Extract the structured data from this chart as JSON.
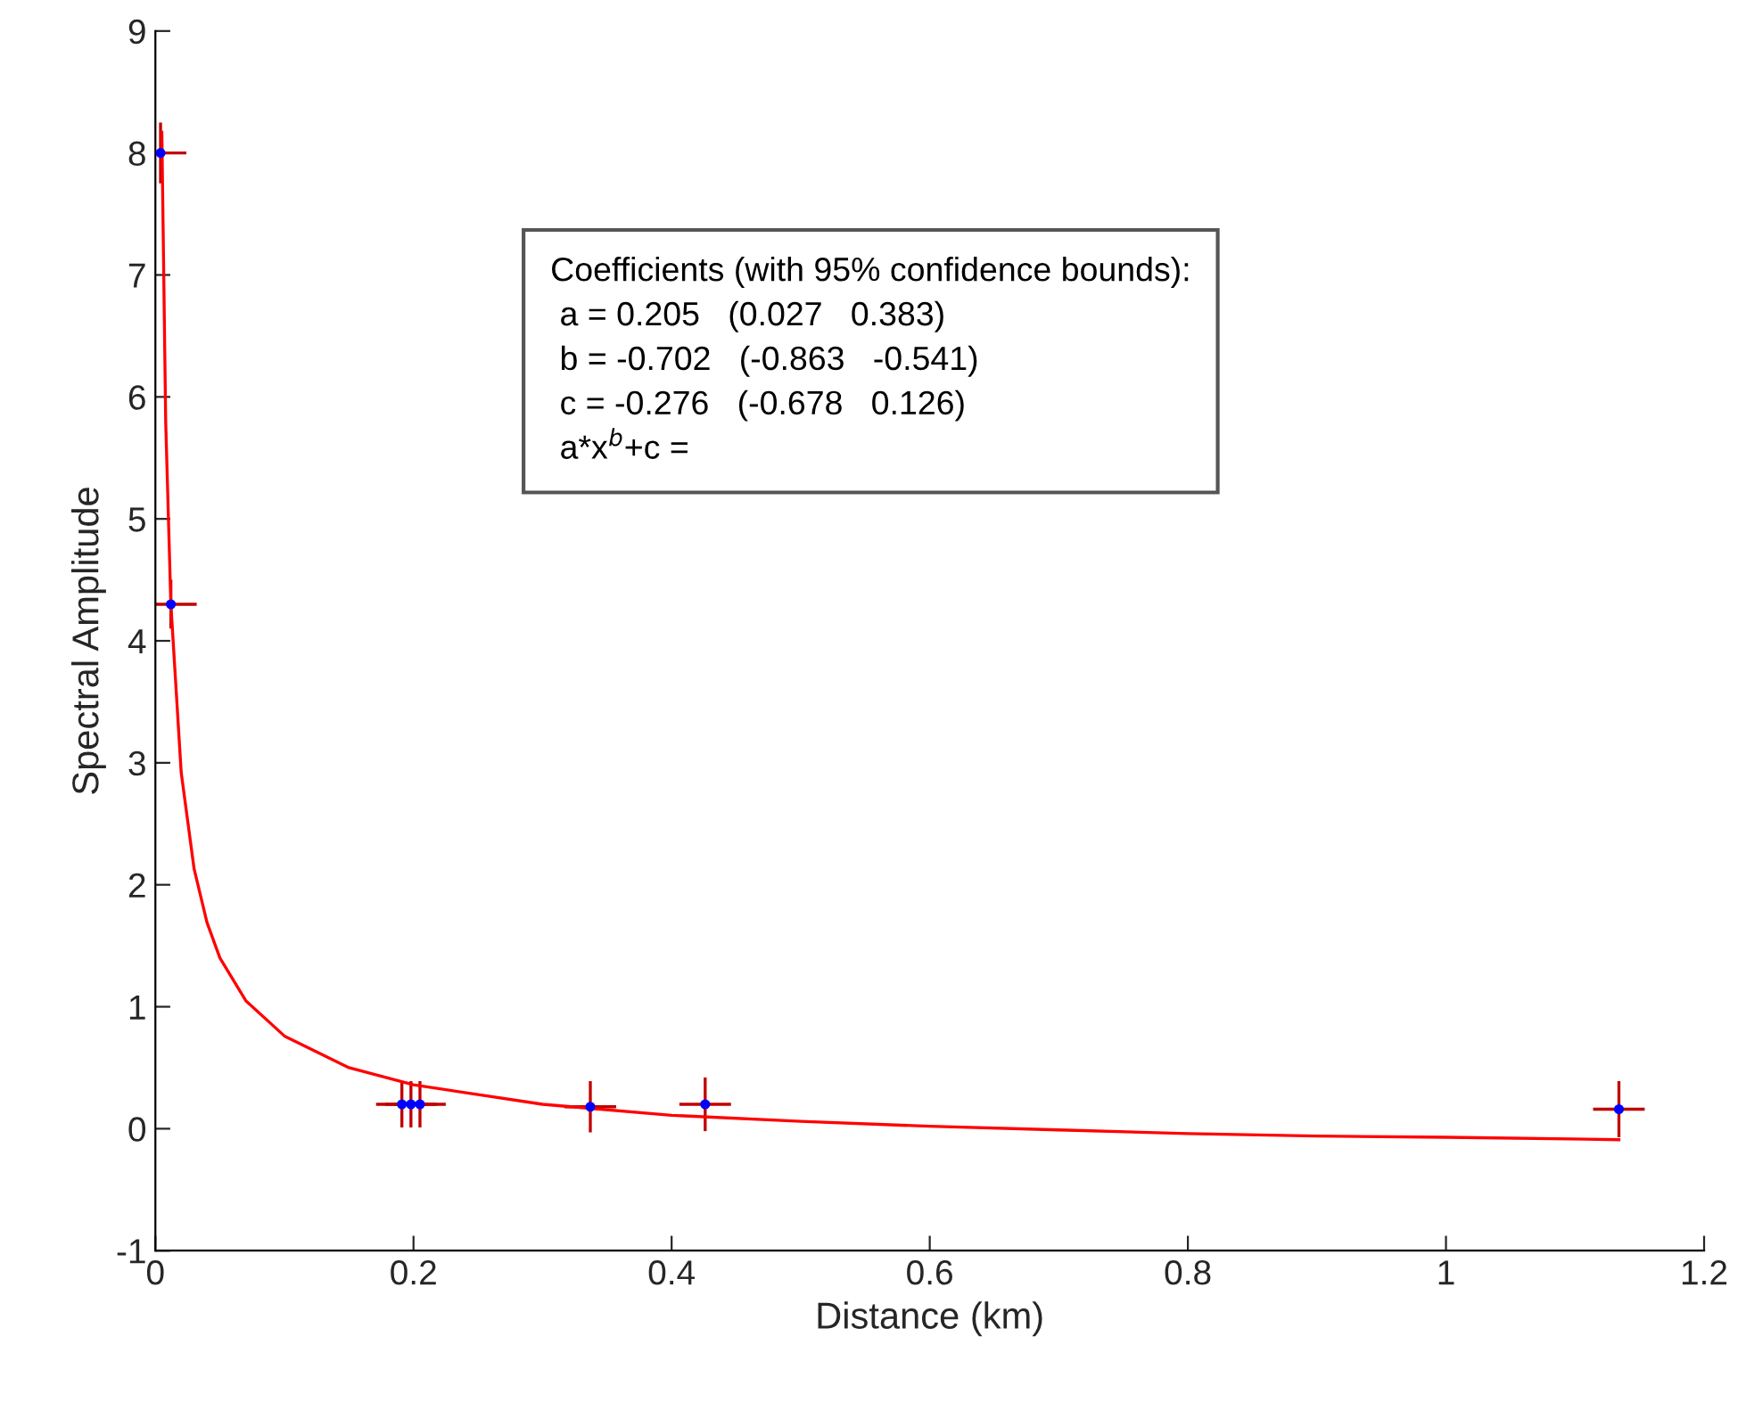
{
  "chart_data": {
    "type": "scatter",
    "xlabel": "Distance (km)",
    "ylabel": "Spectral Amplitude",
    "xlim": [
      0,
      1.2
    ],
    "xticks": [
      0,
      0.2,
      0.4,
      0.6,
      0.8,
      1,
      1.2
    ],
    "ylim": [
      -1,
      9
    ],
    "yticks": [
      -1,
      0,
      1,
      2,
      3,
      4,
      5,
      6,
      7,
      8,
      9
    ],
    "grid": false,
    "legend": false,
    "annotations": [
      "Coefficients (with 95% confidence bounds):",
      " a = 0.205   (0.027   0.383)",
      " b = -0.702   (-0.863   -0.541)",
      " c = -0.276   (-0.678   0.126)",
      " a*x$^{b}$+c ="
    ],
    "series": [
      {
        "color": "#0000ff",
        "marker": "circle",
        "x": [
          0.004,
          0.012,
          0.191,
          0.198,
          0.205,
          0.337,
          0.426,
          1.134
        ],
        "values": [
          8.0,
          4.3,
          0.2,
          0.2,
          0.2,
          0.18,
          0.2,
          0.16
        ],
        "errors": [
          0.25,
          0.2,
          0.19,
          0.19,
          0.19,
          0.21,
          0.22,
          0.23
        ],
        "xerrors": [
          0.02,
          0.02,
          0.02,
          0.02,
          0.02,
          0.02,
          0.02,
          0.02
        ]
      },
      {
        "type": "line",
        "color": "#ff0000",
        "marker": "none",
        "line_style": "solid",
        "x": [
          0.005,
          0.008,
          0.012,
          0.02,
          0.03,
          0.04,
          0.05,
          0.07,
          0.1,
          0.15,
          0.2,
          0.3,
          0.4,
          0.5,
          0.6,
          0.7,
          0.8,
          0.9,
          1.0,
          1.134
        ],
        "values": [
          8.17,
          5.79,
          4.3,
          2.92,
          2.13,
          1.69,
          1.4,
          1.05,
          0.76,
          0.5,
          0.36,
          0.2,
          0.11,
          0.06,
          0.02,
          -0.01,
          -0.04,
          -0.06,
          -0.07,
          -0.09
        ]
      }
    ]
  }
}
